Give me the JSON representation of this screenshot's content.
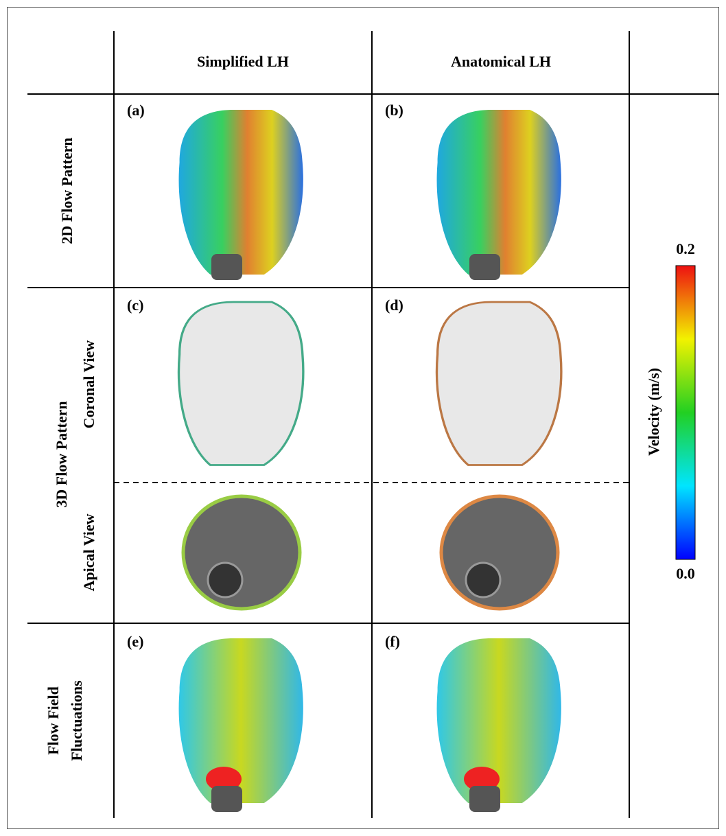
{
  "columns": [
    "Simplified LH",
    "Anatomical LH"
  ],
  "rows": [
    {
      "label": "2D Flow Pattern"
    },
    {
      "label": "3D Flow Pattern",
      "views": [
        "Coronal View",
        "Apical View"
      ]
    },
    {
      "lines": [
        "Flow Field",
        "Fluctuations"
      ]
    }
  ],
  "panels": [
    "(a)",
    "(b)",
    "(c)",
    "(d)",
    "(e)",
    "(f)"
  ],
  "colorbar": {
    "title": "Velocity (m/s)",
    "max": "0.2",
    "min": "0.0"
  }
}
